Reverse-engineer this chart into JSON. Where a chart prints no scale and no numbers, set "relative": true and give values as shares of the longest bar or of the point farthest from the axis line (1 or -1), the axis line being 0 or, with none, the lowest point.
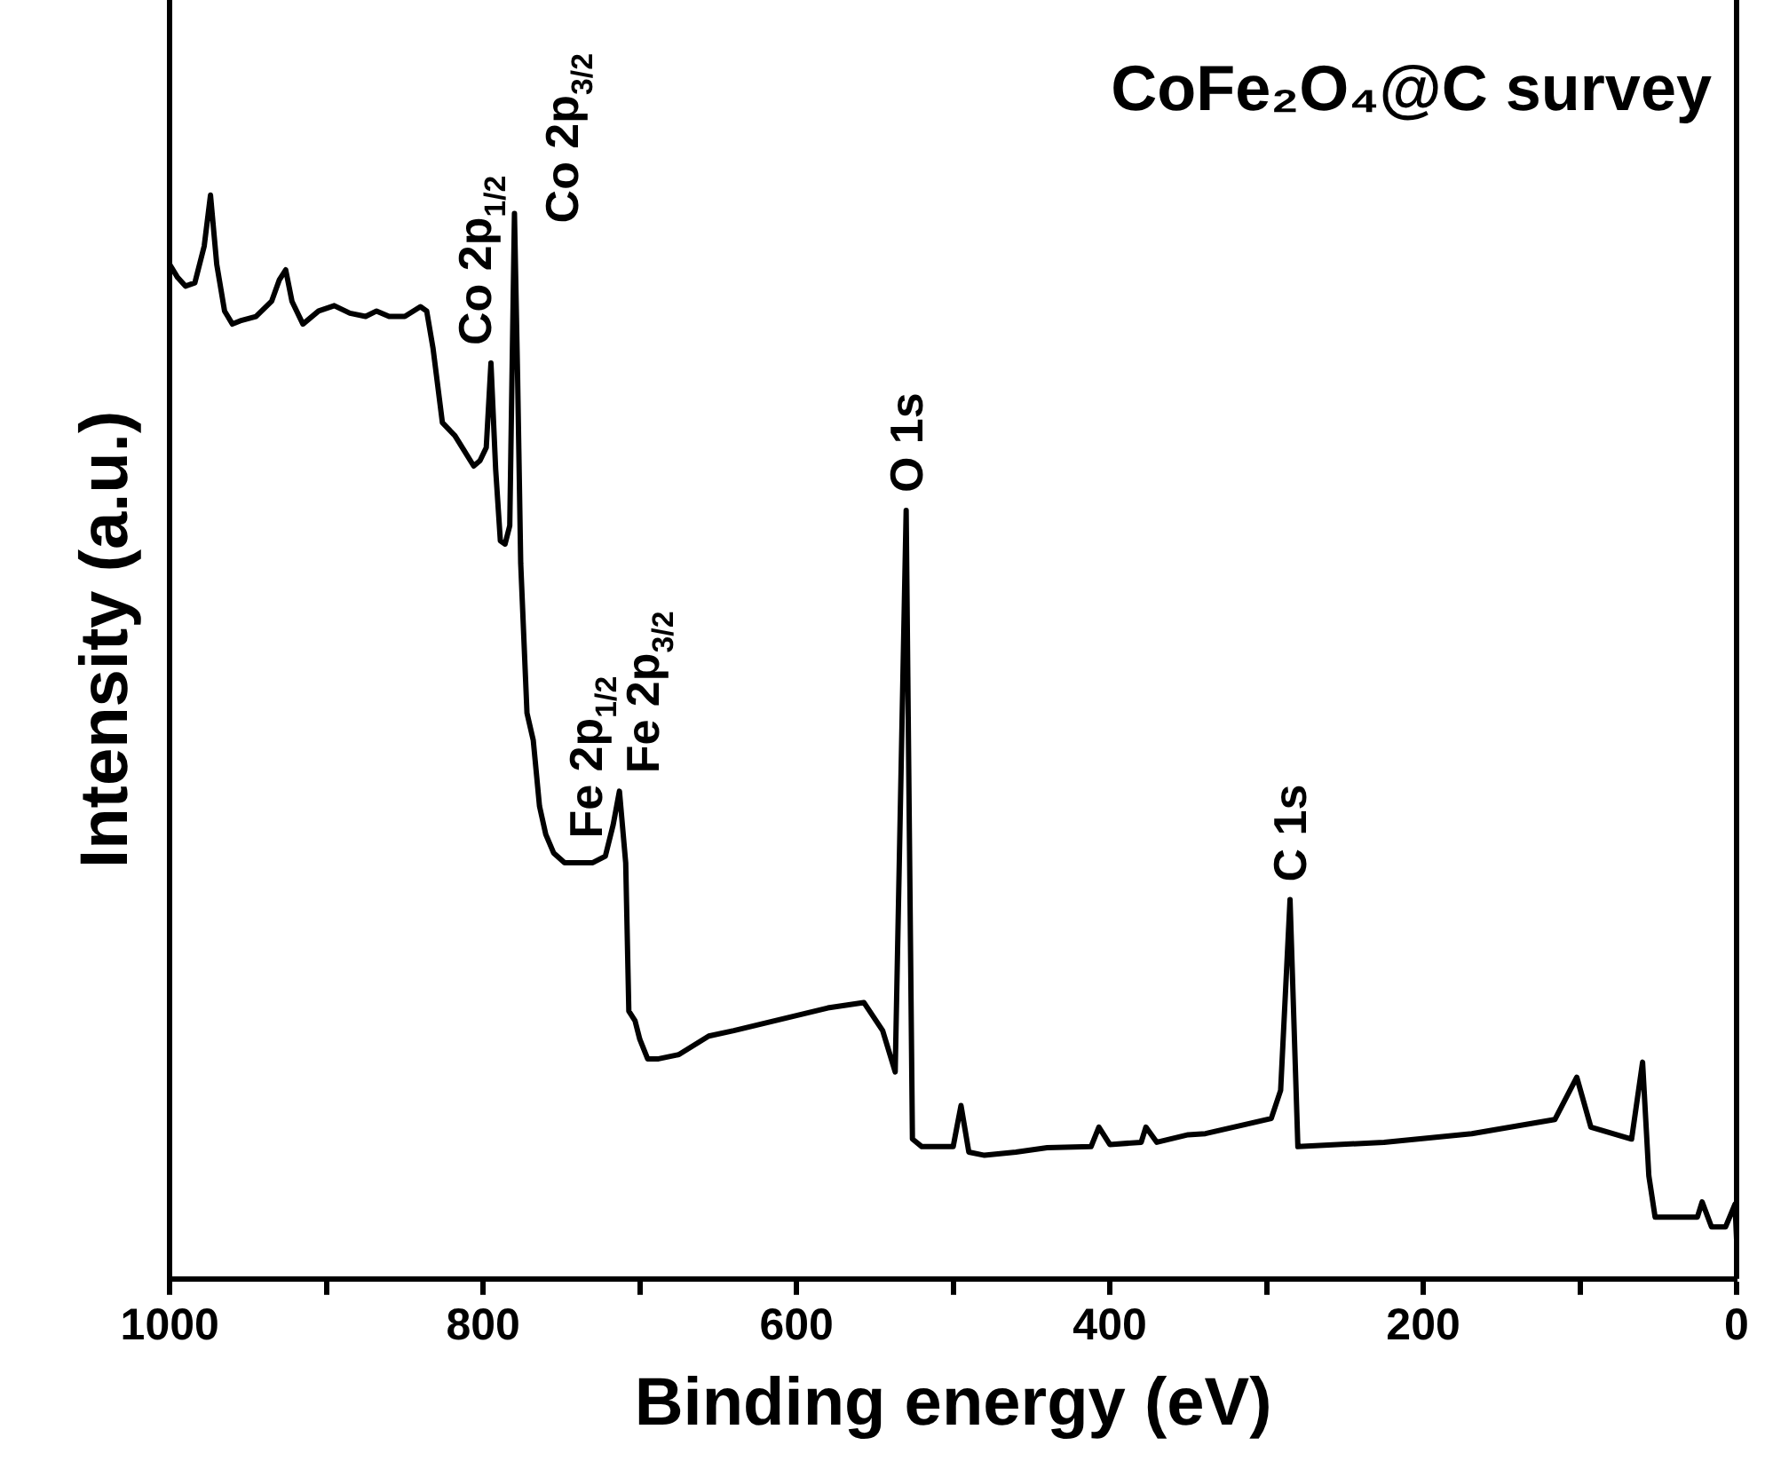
{
  "chart_data": {
    "type": "line",
    "title": "CoFe₂O₄@C survey",
    "xlabel": "Binding energy (eV)",
    "ylabel": "Intensity (a.u.)",
    "relative": true,
    "line_style": "solid",
    "xlim": [
      1000,
      0
    ],
    "xticks": [
      1000,
      {
        "value": 900,
        "label": null
      },
      800,
      {
        "value": 700,
        "label": null
      },
      600,
      {
        "value": 500,
        "label": null
      },
      400,
      {
        "value": 300,
        "label": null
      },
      200,
      {
        "value": 100,
        "label": null
      },
      0
    ],
    "x": [
      1000,
      995,
      990,
      984,
      978,
      974,
      970,
      965,
      960,
      955,
      945,
      935,
      930,
      926,
      922,
      915,
      905,
      895,
      885,
      875,
      868,
      860,
      850,
      840,
      836,
      832,
      826,
      818,
      812,
      806,
      802,
      798,
      795,
      792,
      789,
      786,
      783,
      780,
      778,
      776,
      772,
      768,
      764,
      760,
      755,
      748,
      740,
      730,
      722,
      717,
      713,
      709,
      707,
      703,
      700,
      695,
      688,
      675,
      656,
      640,
      620,
      600,
      580,
      557,
      545,
      537,
      530,
      526,
      520,
      500,
      495,
      490,
      480,
      460,
      440,
      412,
      407,
      400,
      380,
      377,
      370,
      350,
      339,
      297,
      291,
      285,
      280,
      225,
      169,
      116,
      102,
      93,
      67,
      60,
      56,
      52,
      25,
      22,
      16,
      7,
      1,
      0
    ],
    "series": [
      {
        "color": "#000000",
        "values": [
          0.936,
          0.924,
          0.916,
          0.919,
          0.953,
          1,
          0.936,
          0.893,
          0.881,
          0.884,
          0.888,
          0.902,
          0.922,
          0.931,
          0.902,
          0.881,
          0.893,
          0.898,
          0.891,
          0.888,
          0.893,
          0.888,
          0.888,
          0.897,
          0.893,
          0.859,
          0.79,
          0.778,
          0.764,
          0.75,
          0.755,
          0.767,
          0.845,
          0.747,
          0.681,
          0.678,
          0.695,
          0.983,
          0.833,
          0.66,
          0.522,
          0.497,
          0.436,
          0.41,
          0.393,
          0.384,
          0.384,
          0.384,
          0.39,
          0.419,
          0.45,
          0.384,
          0.247,
          0.238,
          0.221,
          0.203,
          0.203,
          0.207,
          0.224,
          0.229,
          0.236,
          0.243,
          0.25,
          0.255,
          0.229,
          0.191,
          0.709,
          0.129,
          0.122,
          0.122,
          0.16,
          0.117,
          0.114,
          0.117,
          0.121,
          0.122,
          0.14,
          0.124,
          0.126,
          0.14,
          0.126,
          0.133,
          0.134,
          0.148,
          0.174,
          0.35,
          0.122,
          0.126,
          0.134,
          0.147,
          0.186,
          0.14,
          0.129,
          0.2,
          0.095,
          0.057,
          0.057,
          0.071,
          0.048,
          0.048,
          0.069,
          0.036
        ]
      }
    ],
    "annotations": [
      {
        "text": "Co 2p$_{1/2}$",
        "x": 795,
        "y": 0.845
      },
      {
        "text": "Co 2p$_{3/2}$",
        "x": 780,
        "y": 0.983
      },
      {
        "text": "Fe 2p$_{1/2}$",
        "x": 724,
        "y": 0.39
      },
      {
        "text": "Fe 2p$_{3/2}$",
        "x": 711,
        "y": 0.45
      },
      {
        "text": "O 1s",
        "x": 530,
        "y": 0.709
      },
      {
        "text": "C 1s",
        "x": 285,
        "y": 0.35
      }
    ]
  }
}
